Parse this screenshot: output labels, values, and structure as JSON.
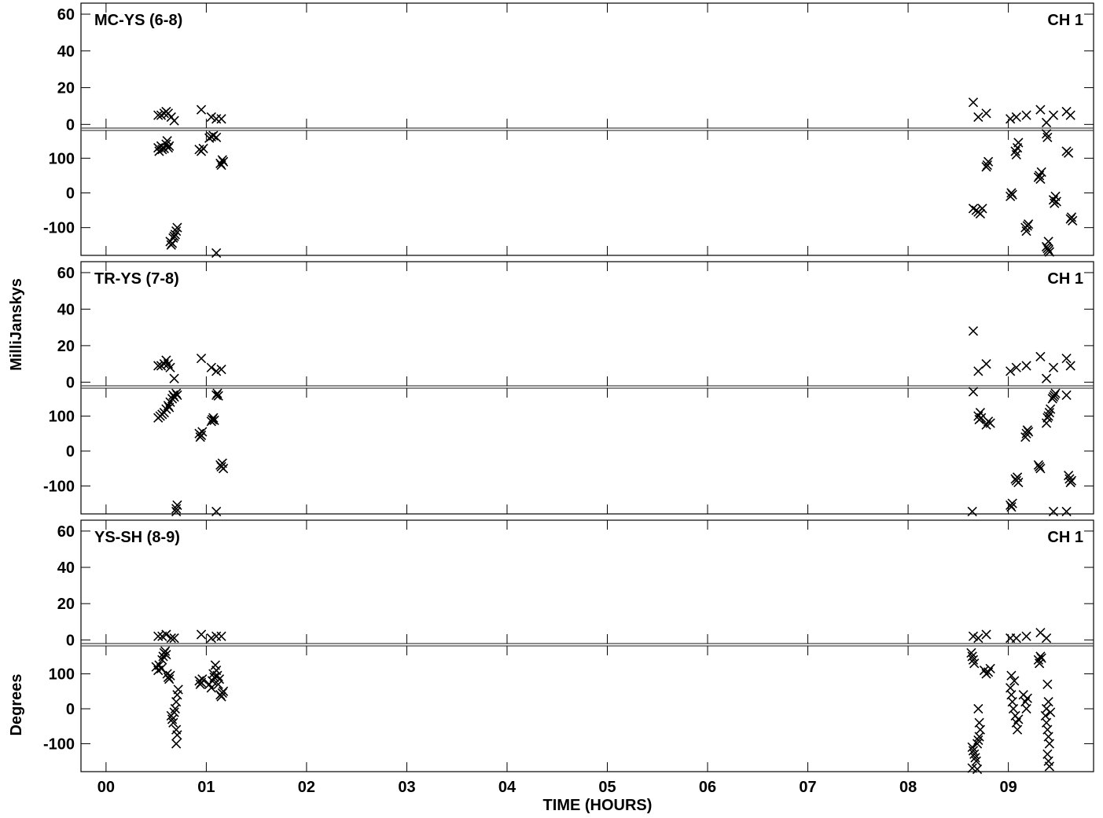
{
  "chart_data": {
    "type": "scatter",
    "marker": "x",
    "marker_color": "#000000",
    "x_axis": {
      "label": "TIME (HOURS)",
      "tick_labels": [
        "00",
        "01",
        "02",
        "03",
        "04",
        "05",
        "06",
        "07",
        "08",
        "09"
      ],
      "tick_values": [
        0,
        1,
        2,
        3,
        4,
        5,
        6,
        7,
        8,
        9
      ],
      "range": [
        -0.25,
        9.85
      ]
    },
    "y_labels": {
      "amplitude": "MilliJanskys",
      "phase": "Degrees"
    },
    "amp_ticks": [
      "60",
      "40",
      "20",
      "0"
    ],
    "amp_tick_values": [
      60,
      40,
      20,
      0
    ],
    "amp_range": [
      -2,
      66
    ],
    "phase_ticks": [
      "100",
      "0",
      "-100"
    ],
    "phase_tick_values": [
      100,
      0,
      -100
    ],
    "phase_range": [
      -180,
      180
    ],
    "panels": [
      {
        "title": "MC-YS (6-8)",
        "channel": "CH 1",
        "amplitude": [
          [
            0.52,
            5
          ],
          [
            0.55,
            5
          ],
          [
            0.58,
            6
          ],
          [
            0.6,
            7
          ],
          [
            0.62,
            6
          ],
          [
            0.65,
            4
          ],
          [
            0.68,
            2
          ],
          [
            0.95,
            8
          ],
          [
            1.05,
            4
          ],
          [
            1.1,
            3
          ],
          [
            1.15,
            3
          ],
          [
            8.65,
            12
          ],
          [
            8.7,
            4
          ],
          [
            8.78,
            6
          ],
          [
            9.02,
            3
          ],
          [
            9.08,
            4
          ],
          [
            9.18,
            5
          ],
          [
            9.32,
            8
          ],
          [
            9.38,
            1
          ],
          [
            9.45,
            5
          ],
          [
            9.58,
            7
          ],
          [
            9.62,
            5
          ]
        ],
        "phase": [
          [
            0.52,
            130
          ],
          [
            0.53,
            120
          ],
          [
            0.55,
            135
          ],
          [
            0.56,
            125
          ],
          [
            0.58,
            128
          ],
          [
            0.6,
            140
          ],
          [
            0.61,
            150
          ],
          [
            0.62,
            130
          ],
          [
            0.63,
            135
          ],
          [
            0.64,
            -140
          ],
          [
            0.65,
            -150
          ],
          [
            0.66,
            -145
          ],
          [
            0.67,
            -130
          ],
          [
            0.68,
            -125
          ],
          [
            0.69,
            -120
          ],
          [
            0.7,
            -110
          ],
          [
            0.71,
            -100
          ],
          [
            0.93,
            125
          ],
          [
            0.95,
            120
          ],
          [
            0.97,
            128
          ],
          [
            1.03,
            158
          ],
          [
            1.05,
            162
          ],
          [
            1.07,
            165
          ],
          [
            1.1,
            160
          ],
          [
            1.1,
            -174
          ],
          [
            1.14,
            85
          ],
          [
            1.15,
            80
          ],
          [
            1.16,
            95
          ],
          [
            1.17,
            90
          ],
          [
            8.65,
            -45
          ],
          [
            8.68,
            -50
          ],
          [
            8.7,
            -55
          ],
          [
            8.72,
            -60
          ],
          [
            8.74,
            -45
          ],
          [
            8.78,
            75
          ],
          [
            8.79,
            80
          ],
          [
            8.8,
            90
          ],
          [
            9.02,
            -10
          ],
          [
            9.03,
            0
          ],
          [
            9.04,
            -5
          ],
          [
            9.07,
            120
          ],
          [
            9.08,
            110
          ],
          [
            9.09,
            130
          ],
          [
            9.1,
            145
          ],
          [
            9.17,
            -100
          ],
          [
            9.18,
            -110
          ],
          [
            9.19,
            -95
          ],
          [
            9.2,
            -90
          ],
          [
            9.3,
            45
          ],
          [
            9.31,
            50
          ],
          [
            9.32,
            40
          ],
          [
            9.33,
            60
          ],
          [
            9.38,
            -155
          ],
          [
            9.39,
            -160
          ],
          [
            9.4,
            -165
          ],
          [
            9.41,
            -170
          ],
          [
            9.4,
            -140
          ],
          [
            9.39,
            160
          ],
          [
            9.38,
            170
          ],
          [
            9.45,
            -20
          ],
          [
            9.46,
            -30
          ],
          [
            9.47,
            -10
          ],
          [
            9.48,
            -25
          ],
          [
            9.58,
            120
          ],
          [
            9.6,
            115
          ],
          [
            9.62,
            -75
          ],
          [
            9.63,
            -70
          ],
          [
            9.64,
            -80
          ]
        ]
      },
      {
        "title": "TR-YS (7-8)",
        "channel": "CH 1",
        "amplitude": [
          [
            0.52,
            9
          ],
          [
            0.55,
            9
          ],
          [
            0.58,
            10
          ],
          [
            0.6,
            12
          ],
          [
            0.62,
            10
          ],
          [
            0.64,
            8
          ],
          [
            0.68,
            2
          ],
          [
            0.95,
            13
          ],
          [
            1.05,
            8
          ],
          [
            1.1,
            6
          ],
          [
            1.15,
            7
          ],
          [
            8.65,
            28
          ],
          [
            8.7,
            6
          ],
          [
            8.78,
            10
          ],
          [
            9.02,
            6
          ],
          [
            9.08,
            8
          ],
          [
            9.18,
            9
          ],
          [
            9.32,
            14
          ],
          [
            9.38,
            2
          ],
          [
            9.45,
            8
          ],
          [
            9.58,
            13
          ],
          [
            9.62,
            9
          ]
        ],
        "phase": [
          [
            0.52,
            95
          ],
          [
            0.54,
            100
          ],
          [
            0.56,
            105
          ],
          [
            0.58,
            110
          ],
          [
            0.6,
            120
          ],
          [
            0.62,
            130
          ],
          [
            0.63,
            125
          ],
          [
            0.64,
            140
          ],
          [
            0.66,
            150
          ],
          [
            0.67,
            160
          ],
          [
            0.68,
            155
          ],
          [
            0.7,
            165
          ],
          [
            0.71,
            160
          ],
          [
            0.7,
            -165
          ],
          [
            0.7,
            -175
          ],
          [
            0.71,
            -155
          ],
          [
            0.93,
            50
          ],
          [
            0.94,
            40
          ],
          [
            0.95,
            45
          ],
          [
            0.96,
            55
          ],
          [
            1.05,
            85
          ],
          [
            1.06,
            90
          ],
          [
            1.07,
            95
          ],
          [
            1.08,
            88
          ],
          [
            1.1,
            160
          ],
          [
            1.11,
            165
          ],
          [
            1.12,
            158
          ],
          [
            1.1,
            -180
          ],
          [
            1.14,
            -40
          ],
          [
            1.15,
            -45
          ],
          [
            1.16,
            -35
          ],
          [
            1.17,
            -50
          ],
          [
            8.64,
            -175
          ],
          [
            8.65,
            170
          ],
          [
            8.7,
            100
          ],
          [
            8.71,
            90
          ],
          [
            8.72,
            110
          ],
          [
            8.73,
            95
          ],
          [
            8.78,
            75
          ],
          [
            8.8,
            85
          ],
          [
            8.82,
            80
          ],
          [
            9.02,
            -155
          ],
          [
            9.03,
            -160
          ],
          [
            9.04,
            -150
          ],
          [
            9.07,
            -80
          ],
          [
            9.08,
            -85
          ],
          [
            9.09,
            -75
          ],
          [
            9.1,
            -90
          ],
          [
            9.17,
            40
          ],
          [
            9.18,
            50
          ],
          [
            9.19,
            60
          ],
          [
            9.2,
            55
          ],
          [
            9.3,
            -40
          ],
          [
            9.31,
            -45
          ],
          [
            9.32,
            -50
          ],
          [
            9.38,
            80
          ],
          [
            9.39,
            95
          ],
          [
            9.4,
            100
          ],
          [
            9.41,
            110
          ],
          [
            9.42,
            120
          ],
          [
            9.44,
            150
          ],
          [
            9.45,
            155
          ],
          [
            9.46,
            160
          ],
          [
            9.47,
            165
          ],
          [
            9.45,
            -175
          ],
          [
            9.58,
            -175
          ],
          [
            9.6,
            -70
          ],
          [
            9.61,
            -80
          ],
          [
            9.62,
            -90
          ],
          [
            9.63,
            -85
          ],
          [
            9.58,
            160
          ]
        ]
      },
      {
        "title": "YS-SH (8-9)",
        "channel": "CH 1",
        "amplitude": [
          [
            0.52,
            2
          ],
          [
            0.56,
            2
          ],
          [
            0.6,
            3
          ],
          [
            0.65,
            1
          ],
          [
            0.68,
            1
          ],
          [
            0.95,
            3
          ],
          [
            1.05,
            1
          ],
          [
            1.1,
            2
          ],
          [
            1.15,
            2
          ],
          [
            8.65,
            2
          ],
          [
            8.7,
            1
          ],
          [
            8.78,
            3
          ],
          [
            9.02,
            1
          ],
          [
            9.08,
            1
          ],
          [
            9.18,
            2
          ],
          [
            9.32,
            4
          ],
          [
            9.38,
            1
          ]
        ],
        "phase": [
          [
            0.5,
            120
          ],
          [
            0.52,
            110
          ],
          [
            0.53,
            125
          ],
          [
            0.55,
            115
          ],
          [
            0.56,
            140
          ],
          [
            0.57,
            150
          ],
          [
            0.58,
            160
          ],
          [
            0.59,
            165
          ],
          [
            0.6,
            155
          ],
          [
            0.61,
            100
          ],
          [
            0.62,
            90
          ],
          [
            0.63,
            85
          ],
          [
            0.64,
            95
          ],
          [
            0.65,
            -20
          ],
          [
            0.66,
            -30
          ],
          [
            0.67,
            -40
          ],
          [
            0.68,
            -10
          ],
          [
            0.69,
            0
          ],
          [
            0.7,
            20
          ],
          [
            0.71,
            40
          ],
          [
            0.72,
            55
          ],
          [
            0.7,
            -60
          ],
          [
            0.71,
            -75
          ],
          [
            0.7,
            -100
          ],
          [
            0.93,
            80
          ],
          [
            0.94,
            70
          ],
          [
            0.95,
            75
          ],
          [
            0.96,
            85
          ],
          [
            1.03,
            70
          ],
          [
            1.05,
            60
          ],
          [
            1.06,
            80
          ],
          [
            1.07,
            100
          ],
          [
            1.08,
            90
          ],
          [
            1.09,
            125
          ],
          [
            1.1,
            110
          ],
          [
            1.11,
            95
          ],
          [
            1.12,
            70
          ],
          [
            1.13,
            85
          ],
          [
            1.14,
            40
          ],
          [
            1.15,
            35
          ],
          [
            1.16,
            45
          ],
          [
            1.17,
            50
          ],
          [
            8.63,
            160
          ],
          [
            8.64,
            150
          ],
          [
            8.65,
            140
          ],
          [
            8.66,
            130
          ],
          [
            8.64,
            -110
          ],
          [
            8.65,
            -120
          ],
          [
            8.66,
            -130
          ],
          [
            8.67,
            -140
          ],
          [
            8.68,
            -150
          ],
          [
            8.69,
            -100
          ],
          [
            8.7,
            -90
          ],
          [
            8.71,
            -80
          ],
          [
            8.72,
            -60
          ],
          [
            8.71,
            -40
          ],
          [
            8.7,
            0
          ],
          [
            8.64,
            -170
          ],
          [
            8.69,
            -180
          ],
          [
            8.76,
            110
          ],
          [
            8.78,
            100
          ],
          [
            8.8,
            105
          ],
          [
            8.82,
            115
          ],
          [
            9.02,
            60
          ],
          [
            9.03,
            40
          ],
          [
            9.04,
            20
          ],
          [
            9.05,
            0
          ],
          [
            9.06,
            80
          ],
          [
            9.07,
            -20
          ],
          [
            9.08,
            -40
          ],
          [
            9.09,
            -60
          ],
          [
            9.1,
            -30
          ],
          [
            9.03,
            95
          ],
          [
            9.15,
            40
          ],
          [
            9.17,
            20
          ],
          [
            9.18,
            0
          ],
          [
            9.19,
            30
          ],
          [
            9.3,
            140
          ],
          [
            9.31,
            130
          ],
          [
            9.32,
            150
          ],
          [
            9.33,
            145
          ],
          [
            9.37,
            -20
          ],
          [
            9.38,
            -40
          ],
          [
            9.39,
            -60
          ],
          [
            9.4,
            -80
          ],
          [
            9.41,
            -100
          ],
          [
            9.39,
            -130
          ],
          [
            9.4,
            -150
          ],
          [
            9.41,
            -165
          ],
          [
            9.39,
            70
          ],
          [
            9.4,
            20
          ],
          [
            9.38,
            0
          ],
          [
            9.42,
            -10
          ]
        ]
      }
    ]
  }
}
